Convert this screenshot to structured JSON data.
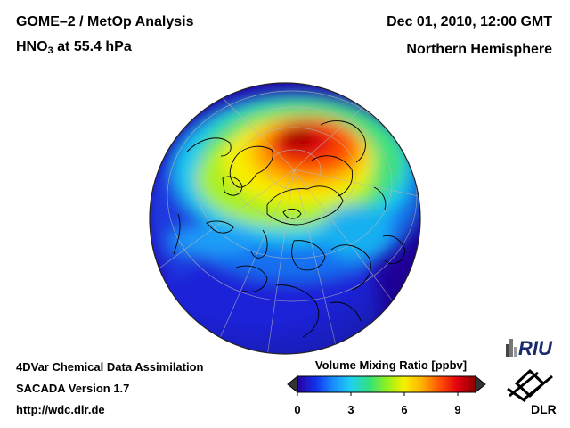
{
  "header": {
    "title_line1": "GOME–2 / MetOp Analysis",
    "species": "HNO",
    "species_sub": "3",
    "level": "at 55.4 hPa",
    "date": "Dec 01, 2010, 12:00 GMT",
    "region": "Northern Hemisphere"
  },
  "footer": {
    "line1": "4DVar Chemical Data Assimilation",
    "line2": "SACADA Version 1.7",
    "line3": "http://wdc.dlr.de"
  },
  "colorbar": {
    "label": "Volume Mixing Ratio [ppbv]",
    "ticks": [
      "0",
      "3",
      "6",
      "9"
    ],
    "range": [
      0,
      10
    ],
    "colors": [
      "#2a00a0",
      "#1030e8",
      "#1a8cff",
      "#20d0f0",
      "#30e080",
      "#90f020",
      "#f8f000",
      "#ffb000",
      "#ff5000",
      "#e00010",
      "#8a0000"
    ]
  },
  "logos": {
    "riu_text": "RIU",
    "dlr_text": "DLR"
  },
  "map": {
    "projection": "orthographic",
    "hemisphere": "north",
    "max_region": "north polar Siberia / Arctic"
  }
}
